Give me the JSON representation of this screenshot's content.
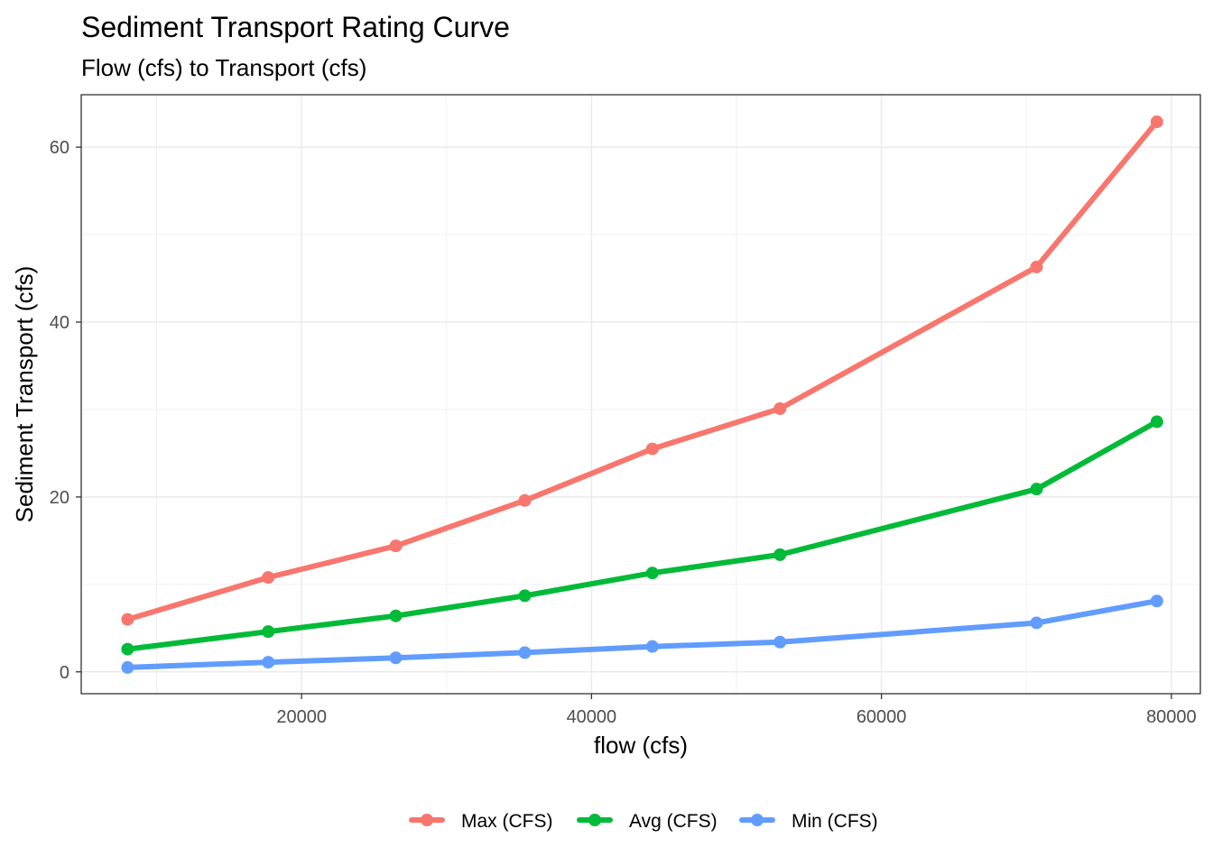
{
  "chart_data": {
    "type": "line",
    "title": "Sediment Transport Rating Curve",
    "subtitle": "Flow (cfs) to Transport (cfs)",
    "xlabel": "flow (cfs)",
    "ylabel": "Sediment Transport (cfs)",
    "xlim": [
      4800,
      82000
    ],
    "ylim": [
      -2.5,
      66
    ],
    "x_ticks": [
      20000,
      40000,
      60000,
      80000
    ],
    "y_ticks": [
      0,
      20,
      40,
      60
    ],
    "grid": true,
    "legend_position": "bottom",
    "x": [
      8000,
      17700,
      26500,
      35400,
      44200,
      53000,
      70700,
      79000
    ],
    "series": [
      {
        "name": "Max (CFS)",
        "color": "#F8766D",
        "values": [
          6.0,
          10.8,
          14.4,
          19.6,
          25.5,
          30.1,
          46.3,
          62.9
        ]
      },
      {
        "name": "Avg (CFS)",
        "color": "#00BA38",
        "values": [
          2.6,
          4.6,
          6.4,
          8.7,
          11.3,
          13.4,
          20.9,
          28.6
        ]
      },
      {
        "name": "Min (CFS)",
        "color": "#619CFF",
        "values": [
          0.5,
          1.1,
          1.6,
          2.2,
          2.9,
          3.4,
          5.6,
          8.1
        ]
      }
    ]
  }
}
